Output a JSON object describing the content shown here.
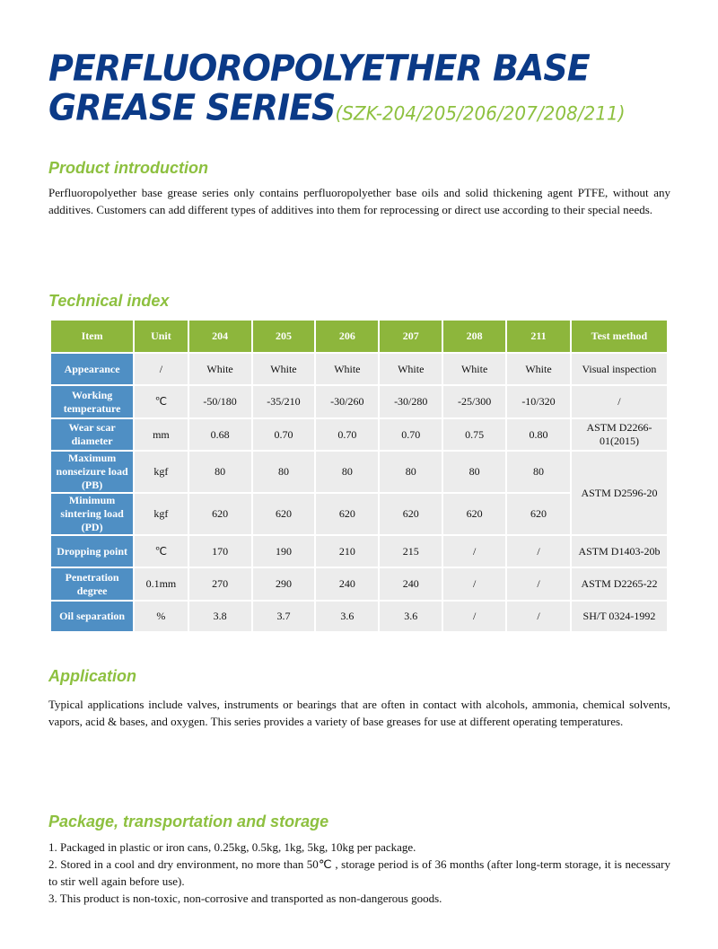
{
  "title": {
    "line1": "PERFLUOROPOLYETHER BASE",
    "line2": "GREASE SERIES",
    "models": "(SZK-204/205/206/207/208/211)"
  },
  "intro": {
    "heading": "Product introduction",
    "text": "Perfluoropolyether base grease series only contains perfluoropolyether base oils and solid thickening agent PTFE, without any additives. Customers can add different types of additives into them for reprocessing or direct use according to their special needs."
  },
  "technical": {
    "heading": "Technical index",
    "headers": [
      "Item",
      "Unit",
      "204",
      "205",
      "206",
      "207",
      "208",
      "211",
      "Test method"
    ],
    "rows": [
      [
        "Appearance",
        "/",
        "White",
        "White",
        "White",
        "White",
        "White",
        "White",
        "Visual inspection"
      ],
      [
        "Working temperature",
        "℃",
        "-50/180",
        "-35/210",
        "-30/260",
        "-30/280",
        "-25/300",
        "-10/320",
        "/"
      ],
      [
        "Wear scar diameter",
        "mm",
        "0.68",
        "0.70",
        "0.70",
        "0.70",
        "0.75",
        "0.80",
        "ASTM D2266-01(2015)"
      ],
      [
        "Maximum nonseizure load (PB)",
        "kgf",
        "80",
        "80",
        "80",
        "80",
        "80",
        "80",
        "ASTM D2596-20"
      ],
      [
        "Minimum sintering load (PD)",
        "kgf",
        "620",
        "620",
        "620",
        "620",
        "620",
        "620"
      ],
      [
        "Dropping point",
        "℃",
        "170",
        "190",
        "210",
        "215",
        "/",
        "/",
        "ASTM D1403-20b"
      ],
      [
        "Penetration degree",
        "0.1mm",
        "270",
        "290",
        "240",
        "240",
        "/",
        "/",
        "ASTM D2265-22"
      ],
      [
        "Oil separation",
        "%",
        "3.8",
        "3.7",
        "3.6",
        "3.6",
        "/",
        "/",
        "SH/T 0324-1992"
      ]
    ],
    "colors": {
      "header": "#8db63c",
      "label": "#4f8fc4",
      "cell": "#ececec"
    }
  },
  "application": {
    "heading": "Application",
    "text": "Typical applications include valves, instruments or bearings that are often in contact with alcohols, ammonia, chemical solvents, vapors, acid & bases, and oxygen. This series provides a variety of base greases for use at different operating temperatures."
  },
  "package": {
    "heading": "Package, transportation and storage",
    "items": [
      "1. Packaged in plastic or iron cans, 0.25kg, 0.5kg, 1kg, 5kg, 10kg per package.",
      "2. Stored in a cool and dry environment, no more than 50℃ , storage period is of 36 months (after long-term storage, it is necessary to stir well again before use).",
      "3. This product is non-toxic, non-corrosive and transported as non-dangerous goods."
    ]
  }
}
